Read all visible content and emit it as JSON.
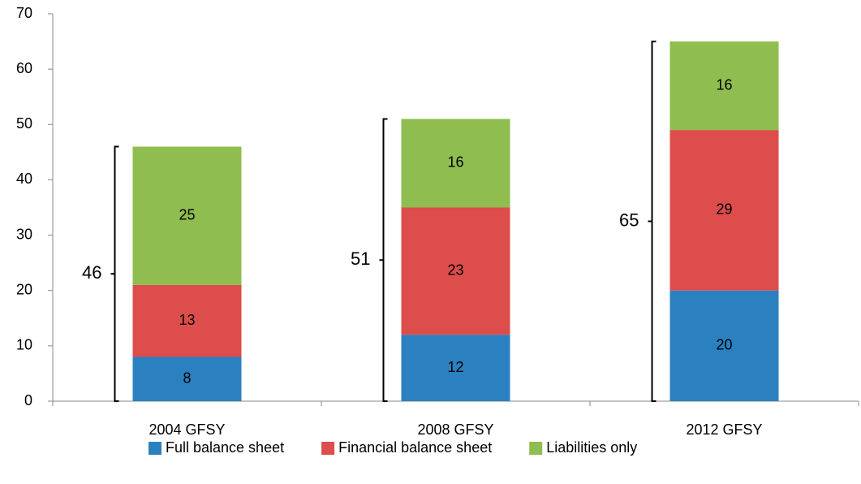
{
  "chart_data": {
    "type": "stacked_bar",
    "categories": [
      "2004 GFSY",
      "2008 GFSY",
      "2012 GFSY"
    ],
    "series": [
      {
        "name": "Full balance sheet",
        "color": "#2b80c0",
        "values": [
          8,
          12,
          20
        ]
      },
      {
        "name": "Financial balance sheet",
        "color": "#dc4d4b",
        "values": [
          13,
          23,
          29
        ]
      },
      {
        "name": "Liabilities only",
        "color": "#8fbd4f",
        "values": [
          25,
          16,
          16
        ]
      }
    ],
    "totals": [
      46,
      51,
      65
    ],
    "ylim": [
      0,
      70
    ],
    "yticks": [
      0,
      10,
      20,
      30,
      40,
      50,
      60,
      70
    ],
    "legend": "bottom"
  }
}
